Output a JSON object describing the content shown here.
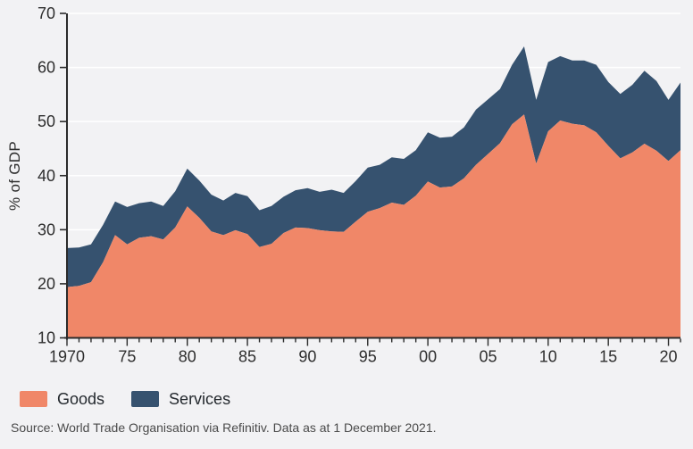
{
  "chart_data": {
    "type": "area",
    "stacked": true,
    "ylabel": "% of GDP",
    "background_color": "#F2F2F4",
    "grid_color": "#FFFFFF",
    "axis_color": "#2B2B2B",
    "tick_label_color": "#2E2E2E",
    "legend_position": "bottom-left",
    "y_axis": {
      "label": "% of GDP",
      "range": [
        10,
        70
      ],
      "ticks": [
        10,
        20,
        30,
        40,
        50,
        60,
        70
      ]
    },
    "x_axis": {
      "range": [
        1970,
        2021
      ],
      "tick_years": [
        1970,
        1975,
        1980,
        1985,
        1990,
        1995,
        2000,
        2005,
        2010,
        2015,
        2020
      ],
      "tick_labels": [
        "1970",
        "75",
        "80",
        "85",
        "90",
        "95",
        "00",
        "05",
        "10",
        "15",
        "20"
      ],
      "minor_ticks_every": 1
    },
    "years": [
      1970,
      1971,
      1972,
      1973,
      1974,
      1975,
      1976,
      1977,
      1978,
      1979,
      1980,
      1981,
      1982,
      1983,
      1984,
      1985,
      1986,
      1987,
      1988,
      1989,
      1990,
      1991,
      1992,
      1993,
      1994,
      1995,
      1996,
      1997,
      1998,
      1999,
      2000,
      2001,
      2002,
      2003,
      2004,
      2005,
      2006,
      2007,
      2008,
      2009,
      2010,
      2011,
      2012,
      2013,
      2014,
      2015,
      2016,
      2017,
      2018,
      2019,
      2020,
      2021
    ],
    "series": [
      {
        "name": "Goods",
        "color": "#F08768",
        "values": [
          19.4,
          19.6,
          20.3,
          24.0,
          29.0,
          27.3,
          28.5,
          28.8,
          28.2,
          30.4,
          34.3,
          32.2,
          29.7,
          29.0,
          29.9,
          29.2,
          26.8,
          27.4,
          29.4,
          30.4,
          30.3,
          29.9,
          29.7,
          29.6,
          31.5,
          33.3,
          34.0,
          35.0,
          34.6,
          36.3,
          38.9,
          37.8,
          38.0,
          39.5,
          42.0,
          44.0,
          46.0,
          49.5,
          51.3,
          42.2,
          48.2,
          50.2,
          49.6,
          49.3,
          48.0,
          45.5,
          43.2,
          44.3,
          45.9,
          44.6,
          42.7,
          44.7
        ]
      },
      {
        "name": "Services",
        "color": "#36526F",
        "values": [
          7.2,
          7.1,
          7.0,
          6.9,
          6.2,
          6.9,
          6.4,
          6.4,
          6.2,
          6.7,
          7.0,
          6.9,
          6.8,
          6.4,
          6.9,
          7.0,
          6.8,
          7.0,
          6.7,
          6.9,
          7.4,
          7.1,
          7.7,
          7.2,
          7.5,
          8.2,
          8.0,
          8.4,
          8.5,
          8.4,
          9.1,
          9.2,
          9.2,
          9.4,
          10.2,
          10.1,
          10.0,
          11.0,
          12.6,
          11.8,
          12.8,
          11.9,
          11.7,
          12.0,
          12.5,
          11.8,
          11.9,
          12.5,
          13.5,
          12.9,
          11.3,
          12.5
        ]
      }
    ]
  },
  "legend": {
    "items": [
      {
        "label": "Goods",
        "color": "#F08768"
      },
      {
        "label": "Services",
        "color": "#36526F"
      }
    ]
  },
  "source": "Source: World Trade Organisation via Refinitiv. Data as at 1 December 2021."
}
